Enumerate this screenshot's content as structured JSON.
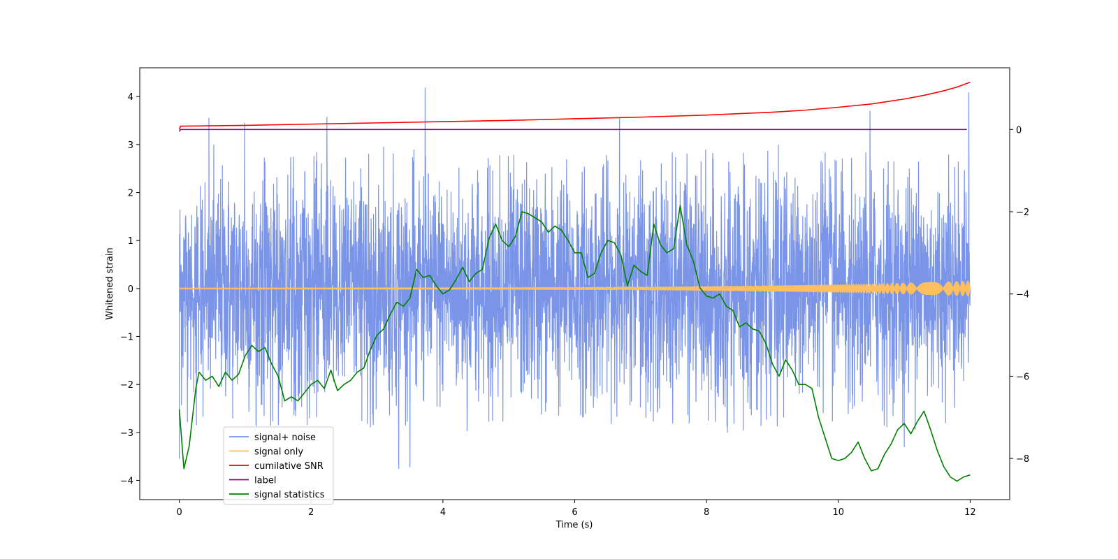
{
  "chart_data": {
    "type": "line",
    "title": "",
    "xlabel": "Time (s)",
    "ylabel": "Whitened strain",
    "y2label": "",
    "xlim": [
      -0.6,
      12.6
    ],
    "ylim": [
      -4.4,
      4.6
    ],
    "y2lim": [
      -9.0,
      1.5
    ],
    "xticks": [
      0,
      2,
      4,
      6,
      8,
      10,
      12
    ],
    "yticks": [
      -4,
      -3,
      -2,
      -1,
      0,
      1,
      2,
      3,
      4
    ],
    "y2ticks": [
      -8,
      -6,
      -4,
      -2,
      0
    ],
    "grid": false,
    "legend_position": "lower-left",
    "series": [
      {
        "name": "signal+ noise",
        "axis": "left",
        "color": "#7a94e8",
        "style": "noise",
        "t_range": [
          0,
          12
        ],
        "typical_amplitude": 1.9,
        "peak_values": [
          {
            "x": 0.45,
            "y": 3.55
          },
          {
            "x": 0.99,
            "y": 3.45
          },
          {
            "x": 2.24,
            "y": 3.57
          },
          {
            "x": 3.73,
            "y": 4.18
          },
          {
            "x": 6.68,
            "y": 3.55
          },
          {
            "x": 10.48,
            "y": 3.7
          },
          {
            "x": 11.98,
            "y": 4.08
          },
          {
            "x": 3.33,
            "y": -3.75
          },
          {
            "x": 3.5,
            "y": -3.72
          },
          {
            "x": 0.0,
            "y": -3.55
          },
          {
            "x": 11.0,
            "y": -3.3
          }
        ]
      },
      {
        "name": "signal only",
        "axis": "left",
        "color": "#ffbf5f",
        "style": "chirp",
        "t_range": [
          0,
          12
        ],
        "start_amplitude": 0.01,
        "end_amplitude": 0.15
      },
      {
        "name": "cumilative SNR",
        "axis": "right",
        "color": "#ff0000",
        "x": [
          0,
          0.02,
          1,
          2,
          3,
          4,
          5,
          6,
          7,
          8,
          9,
          9.5,
          10,
          10.5,
          11,
          11.3,
          11.6,
          11.8,
          12
        ],
        "values": [
          0.0,
          0.08,
          0.1,
          0.13,
          0.16,
          0.19,
          0.22,
          0.26,
          0.3,
          0.35,
          0.42,
          0.47,
          0.54,
          0.62,
          0.74,
          0.83,
          0.94,
          1.03,
          1.15
        ]
      },
      {
        "name": "label",
        "axis": "right",
        "color": "#6a1b6a",
        "x": [
          0,
          0.02,
          11.95
        ],
        "values": [
          -0.05,
          0.0,
          0.0
        ]
      },
      {
        "name": "signal statistics",
        "axis": "right",
        "color": "#008000",
        "x": [
          0.0,
          0.07,
          0.15,
          0.25,
          0.3,
          0.4,
          0.5,
          0.6,
          0.7,
          0.8,
          0.9,
          1.0,
          1.1,
          1.2,
          1.3,
          1.4,
          1.5,
          1.6,
          1.7,
          1.8,
          1.9,
          2.0,
          2.1,
          2.2,
          2.3,
          2.4,
          2.5,
          2.6,
          2.7,
          2.8,
          2.9,
          3.0,
          3.1,
          3.2,
          3.3,
          3.4,
          3.5,
          3.6,
          3.7,
          3.8,
          3.9,
          4.0,
          4.1,
          4.2,
          4.3,
          4.4,
          4.5,
          4.6,
          4.7,
          4.8,
          4.9,
          5.0,
          5.1,
          5.2,
          5.3,
          5.4,
          5.5,
          5.6,
          5.7,
          5.8,
          5.9,
          6.0,
          6.1,
          6.2,
          6.3,
          6.4,
          6.5,
          6.6,
          6.7,
          6.8,
          6.9,
          7.0,
          7.1,
          7.2,
          7.3,
          7.4,
          7.5,
          7.6,
          7.7,
          7.8,
          7.9,
          8.0,
          8.1,
          8.2,
          8.3,
          8.4,
          8.5,
          8.6,
          8.7,
          8.8,
          8.9,
          9.0,
          9.1,
          9.2,
          9.3,
          9.4,
          9.5,
          9.6,
          9.7,
          9.8,
          9.9,
          10.0,
          10.1,
          10.2,
          10.3,
          10.4,
          10.5,
          10.6,
          10.7,
          10.8,
          10.9,
          11.0,
          11.1,
          11.2,
          11.3,
          11.4,
          11.5,
          11.6,
          11.7,
          11.8,
          11.9,
          12.0
        ],
        "values": [
          -6.8,
          -8.25,
          -7.7,
          -6.3,
          -5.9,
          -6.1,
          -6.0,
          -6.25,
          -5.9,
          -6.1,
          -5.95,
          -5.5,
          -5.25,
          -5.4,
          -5.3,
          -5.7,
          -6.0,
          -6.6,
          -6.5,
          -6.6,
          -6.4,
          -6.2,
          -6.1,
          -6.3,
          -5.85,
          -6.35,
          -6.2,
          -6.1,
          -5.9,
          -5.8,
          -5.35,
          -5.0,
          -4.85,
          -4.5,
          -4.2,
          -4.3,
          -4.1,
          -3.4,
          -3.6,
          -3.55,
          -3.8,
          -4.0,
          -3.9,
          -3.65,
          -3.35,
          -3.7,
          -3.5,
          -3.4,
          -2.65,
          -2.3,
          -2.7,
          -2.85,
          -2.6,
          -2.0,
          -2.05,
          -2.15,
          -2.25,
          -2.5,
          -2.35,
          -2.45,
          -2.7,
          -3.0,
          -3.0,
          -3.6,
          -3.5,
          -3.0,
          -2.7,
          -2.75,
          -3.05,
          -3.8,
          -3.3,
          -3.45,
          -3.55,
          -2.3,
          -2.8,
          -3.0,
          -2.9,
          -1.85,
          -2.8,
          -3.2,
          -3.85,
          -4.05,
          -4.1,
          -4.0,
          -4.3,
          -4.4,
          -4.8,
          -4.7,
          -4.85,
          -4.9,
          -5.2,
          -5.7,
          -6.0,
          -5.6,
          -5.85,
          -6.2,
          -6.2,
          -6.3,
          -7.0,
          -7.5,
          -8.0,
          -8.05,
          -8.0,
          -7.85,
          -7.6,
          -8.0,
          -8.3,
          -8.25,
          -7.9,
          -7.65,
          -7.3,
          -7.15,
          -7.4,
          -7.1,
          -6.85,
          -7.3,
          -7.8,
          -8.2,
          -8.45,
          -8.55,
          -8.45,
          -8.4
        ]
      }
    ]
  }
}
